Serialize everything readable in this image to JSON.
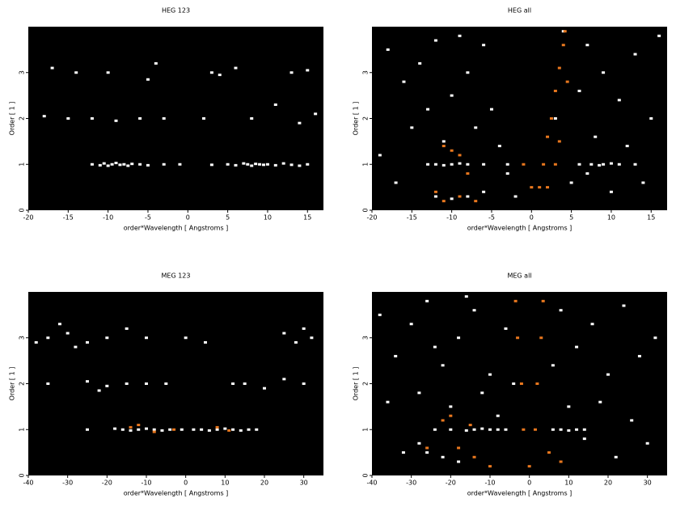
{
  "chart_data": [
    {
      "type": "scatter",
      "title": "HEG 123",
      "xlabel": "order*Wavelength [ Angstroms ]",
      "ylabel": "Order [ 1 ]",
      "xlim": [
        -20,
        17
      ],
      "ylim": [
        0,
        4
      ],
      "xticks": [
        -20,
        -15,
        -10,
        -5,
        0,
        5,
        10,
        15
      ],
      "yticks": [
        0,
        1,
        2,
        3
      ],
      "series": [
        {
          "color": "#ffffff",
          "x": [
            -12,
            -11,
            -10.5,
            -10,
            -9.5,
            -9,
            -8.5,
            -8,
            -7.5,
            -7,
            -6,
            -5,
            -3,
            -1,
            3,
            5,
            6,
            7,
            7.5,
            8,
            8.5,
            9,
            9.5,
            10,
            11,
            12,
            13,
            14,
            15,
            -18,
            -15,
            -12,
            -9,
            -6,
            -3,
            2,
            8,
            11,
            14,
            16,
            -17,
            -14,
            -10,
            -5,
            -4,
            3,
            4,
            6,
            13,
            15
          ],
          "y": [
            1.0,
            0.98,
            1.02,
            0.97,
            1.0,
            1.03,
            0.99,
            1.0,
            0.97,
            1.01,
            1.0,
            0.98,
            1.0,
            1.0,
            0.99,
            1.0,
            0.98,
            1.02,
            1.0,
            0.97,
            1.01,
            1.0,
            0.99,
            1.0,
            0.98,
            1.02,
            0.99,
            0.97,
            1.0,
            2.05,
            2.0,
            2.0,
            1.95,
            2.0,
            2.0,
            2.0,
            2.0,
            2.3,
            1.9,
            2.1,
            3.1,
            3.0,
            3.0,
            2.85,
            3.2,
            3.0,
            2.95,
            3.1,
            3.0,
            3.05
          ]
        }
      ]
    },
    {
      "type": "scatter",
      "title": "HEG all",
      "xlabel": "order*Wavelength [ Angstroms ]",
      "ylabel": "Order [ 1 ]",
      "xlim": [
        -20,
        17
      ],
      "ylim": [
        0,
        4
      ],
      "xticks": [
        -20,
        -15,
        -10,
        -5,
        0,
        5,
        10,
        15
      ],
      "yticks": [
        0,
        1,
        2,
        3
      ],
      "series": [
        {
          "color": "#ffffff",
          "x": [
            -18,
            -16,
            -14,
            -12,
            -10,
            -8,
            -6,
            -5,
            -15,
            -11,
            -7,
            -4,
            -17,
            -13,
            -9,
            -19,
            -3,
            -2,
            7,
            9,
            11,
            13,
            15,
            6,
            8,
            12,
            14,
            10,
            16,
            7,
            -13,
            -12,
            -11,
            -10,
            -9,
            -8,
            -6,
            -3,
            6,
            7.5,
            8.5,
            9,
            10,
            11,
            13,
            -12,
            -10,
            -8,
            -6,
            4,
            5,
            3
          ],
          "y": [
            3.5,
            2.8,
            3.2,
            3.7,
            2.5,
            3.0,
            3.6,
            2.2,
            1.8,
            1.5,
            1.8,
            1.4,
            0.6,
            2.2,
            3.8,
            1.2,
            0.8,
            0.3,
            3.6,
            3.0,
            2.4,
            3.4,
            2.0,
            2.6,
            1.6,
            1.4,
            0.6,
            0.4,
            3.8,
            0.8,
            1.0,
            1.0,
            0.98,
            1.0,
            1.02,
            1.0,
            1.0,
            1.0,
            1.0,
            1.0,
            0.98,
            1.0,
            1.02,
            1.0,
            1.0,
            0.3,
            0.25,
            0.3,
            0.4,
            3.9,
            0.6,
            2.0
          ]
        },
        {
          "color": "#e8771e",
          "x": [
            1,
            1.5,
            2,
            2.5,
            3,
            3.5,
            4,
            4.2,
            2,
            3,
            -10,
            -9,
            -11,
            -8,
            -12,
            -11,
            -9,
            -7,
            -1,
            0,
            3.5,
            4.5
          ],
          "y": [
            0.5,
            1.0,
            1.6,
            2.0,
            2.6,
            3.1,
            3.6,
            3.9,
            0.5,
            1.0,
            1.3,
            1.2,
            1.4,
            0.8,
            0.4,
            0.2,
            0.3,
            0.2,
            1.0,
            0.5,
            1.5,
            2.8
          ]
        }
      ]
    },
    {
      "type": "scatter",
      "title": "MEG 123",
      "xlabel": "order*Wavelength [ Angstroms ]",
      "ylabel": "Order [ 1 ]",
      "xlim": [
        -40,
        35
      ],
      "ylim": [
        0,
        4
      ],
      "xticks": [
        -40,
        -30,
        -20,
        -10,
        0,
        10,
        20,
        30
      ],
      "yticks": [
        0,
        1,
        2,
        3
      ],
      "series": [
        {
          "color": "#ffffff",
          "x": [
            -25,
            -18,
            -16,
            -14,
            -12,
            -10,
            -8,
            -6,
            -4,
            -1,
            2,
            4,
            6,
            8,
            10,
            12,
            14,
            16,
            18,
            -35,
            -25,
            -20,
            -15,
            -10,
            -5,
            -22,
            15,
            20,
            25,
            30,
            12,
            -38,
            -35,
            -30,
            -25,
            -20,
            -15,
            -10,
            0,
            5,
            25,
            28,
            30,
            32,
            -32,
            -28
          ],
          "y": [
            1.0,
            1.02,
            1.0,
            0.98,
            1.0,
            1.02,
            1.0,
            0.98,
            1.0,
            1.0,
            1.0,
            1.0,
            0.98,
            1.0,
            1.02,
            1.0,
            0.98,
            1.0,
            1.0,
            2.0,
            2.05,
            1.95,
            2.0,
            2.0,
            2.0,
            1.85,
            2.0,
            1.9,
            2.1,
            2.0,
            2.0,
            2.9,
            3.0,
            3.1,
            2.9,
            3.0,
            3.2,
            3.0,
            3.0,
            2.9,
            3.1,
            2.9,
            3.2,
            3.0,
            3.3,
            2.8
          ]
        },
        {
          "color": "#e8771e",
          "x": [
            -12,
            -8,
            -14,
            8,
            11,
            -3
          ],
          "y": [
            1.1,
            0.95,
            1.05,
            1.05,
            0.98,
            1.0
          ]
        }
      ]
    },
    {
      "type": "scatter",
      "title": "MEG all",
      "xlabel": "order*Wavelength [ Angstroms ]",
      "ylabel": "Order [ 1 ]",
      "xlim": [
        -40,
        35
      ],
      "ylim": [
        0,
        4
      ],
      "xticks": [
        -40,
        -30,
        -20,
        -10,
        0,
        10,
        20,
        30
      ],
      "yticks": [
        0,
        1,
        2,
        3
      ],
      "series": [
        {
          "color": "#ffffff",
          "x": [
            -38,
            -34,
            -30,
            -26,
            -22,
            -18,
            -14,
            -10,
            -6,
            -36,
            -28,
            -20,
            -12,
            -8,
            -32,
            -24,
            -16,
            -4,
            8,
            12,
            16,
            20,
            24,
            28,
            32,
            10,
            18,
            26,
            30,
            22,
            14,
            6,
            -24,
            -20,
            -16,
            -14,
            -12,
            -10,
            -8,
            -6,
            6,
            8,
            10,
            12,
            14,
            -26,
            -22,
            -18,
            -28
          ],
          "y": [
            3.5,
            2.6,
            3.3,
            3.8,
            2.4,
            3.0,
            3.6,
            2.2,
            3.2,
            1.6,
            1.8,
            1.5,
            1.8,
            1.3,
            0.5,
            2.8,
            3.9,
            2.0,
            3.6,
            2.8,
            3.3,
            2.2,
            3.7,
            2.6,
            3.0,
            1.5,
            1.6,
            1.2,
            0.7,
            0.4,
            0.8,
            2.4,
            1.0,
            1.0,
            0.98,
            1.0,
            1.02,
            1.0,
            1.0,
            1.0,
            1.0,
            1.0,
            0.98,
            1.0,
            1.0,
            0.5,
            0.4,
            0.3,
            0.7
          ]
        },
        {
          "color": "#e8771e",
          "x": [
            -1.5,
            -2,
            -3,
            -3.5,
            1.5,
            2,
            3,
            3.5,
            -22,
            -18,
            -20,
            -14,
            -10,
            5,
            8,
            0,
            -26,
            -15
          ],
          "y": [
            1,
            2,
            3,
            3.8,
            1,
            2,
            3,
            3.8,
            1.2,
            0.6,
            1.3,
            0.4,
            0.2,
            0.5,
            0.3,
            0.2,
            0.6,
            1.1
          ]
        }
      ]
    }
  ]
}
